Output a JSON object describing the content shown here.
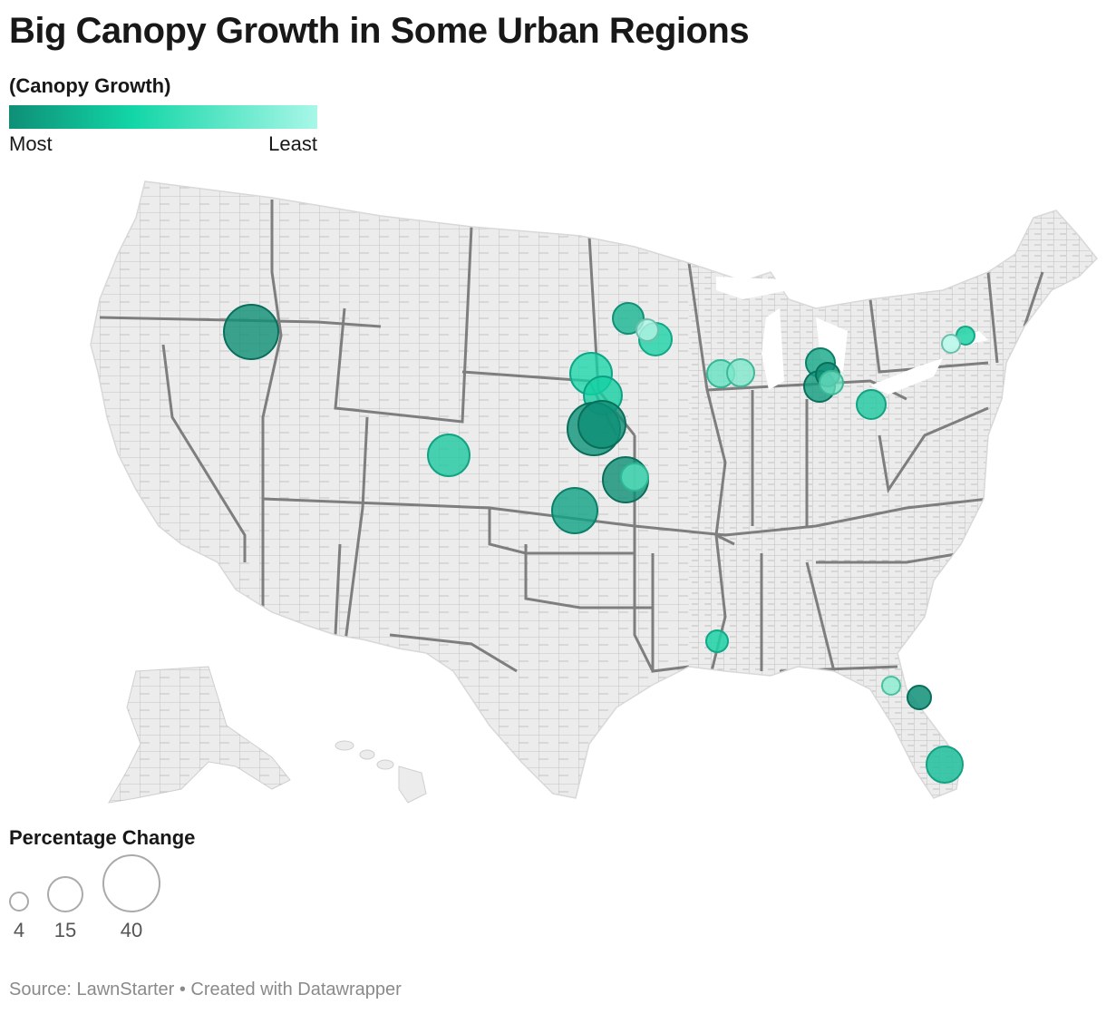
{
  "title": "Big Canopy Growth in Some Urban Regions",
  "color_legend": {
    "title": "(Canopy Growth)",
    "low_label": "Most",
    "high_label": "Least",
    "color_most": "#0e8f76",
    "color_mid": "#12d6a6",
    "color_least": "#a8f7e8"
  },
  "size_legend": {
    "title": "Percentage Change",
    "values": [
      4,
      15,
      40
    ]
  },
  "source": "Source: LawnStarter • Created with Datawrapper",
  "colors": {
    "land": "#ececec",
    "county_border": "#b4b4b4",
    "state_border": "#808080"
  },
  "regions_note_icon": "us-county-map"
}
